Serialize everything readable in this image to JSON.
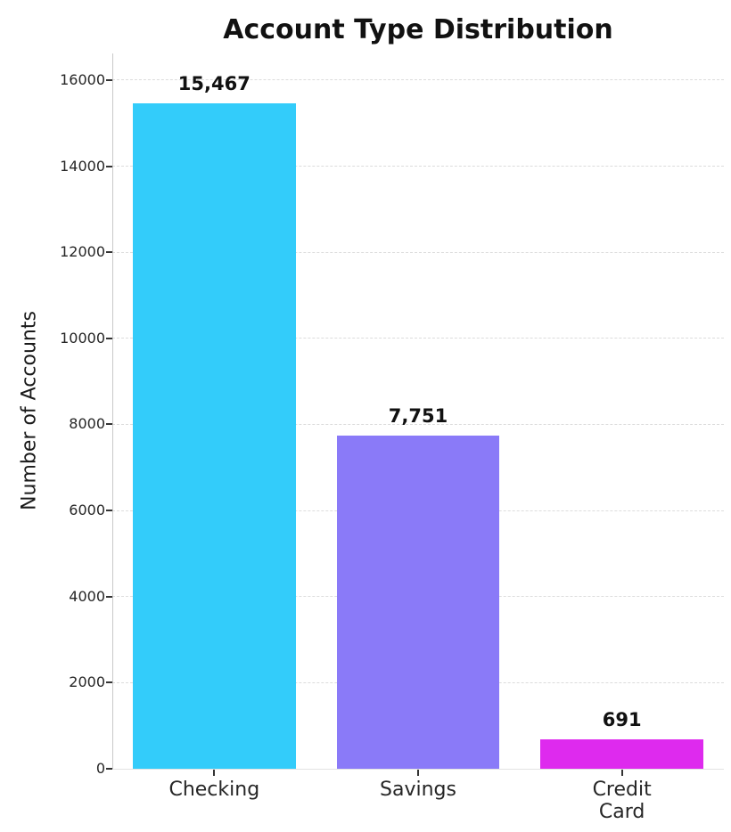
{
  "title": "Account Type Distribution",
  "chart_data": {
    "type": "bar",
    "title": "Account Type Distribution",
    "categories": [
      "Checking",
      "Savings",
      "Credit Card"
    ],
    "tick_labels": [
      "Checking",
      "Savings",
      "Credit\nCard"
    ],
    "values": [
      15467,
      7751,
      691
    ],
    "value_labels": [
      "15,467",
      "7,751",
      "691"
    ],
    "bar_colors": [
      "#33ccfa",
      "#8a7af8",
      "#de2aee"
    ],
    "xlabel": "",
    "ylabel": "Number of Accounts",
    "ylim": [
      0,
      16620
    ],
    "yticks": [
      0,
      2000,
      4000,
      6000,
      8000,
      10000,
      12000,
      14000,
      16000
    ],
    "grid": "horizontal-dashed",
    "legend": "none",
    "colors": {
      "background": "#ffffff",
      "text": "#1a1a1a",
      "grid": "#dcdcdc",
      "spine_left": "#c9c9c9",
      "spine_bottom": "#e2e2e2",
      "tick_mark": "#333333"
    }
  }
}
